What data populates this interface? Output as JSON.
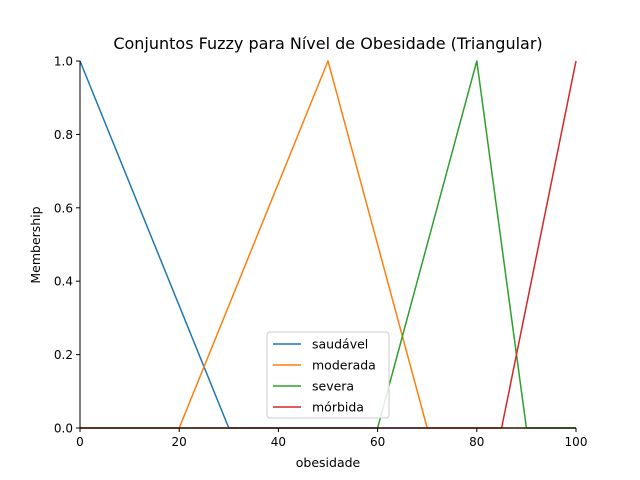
{
  "chart_data": {
    "type": "line",
    "title": "Conjuntos Fuzzy para Nível de Obesidade (Triangular)",
    "xlabel": "obesidade",
    "ylabel": "Membership",
    "xlim": [
      0,
      100
    ],
    "ylim": [
      0,
      1.0
    ],
    "x_ticks": [
      0,
      20,
      40,
      60,
      80,
      100
    ],
    "y_ticks": [
      "0.0",
      "0.2",
      "0.4",
      "0.6",
      "0.8",
      "1.0"
    ],
    "grid": false,
    "legend_position": "bottom-center",
    "series": [
      {
        "name": "saudável",
        "color": "#1f77b4",
        "x": [
          0,
          30,
          100
        ],
        "y": [
          1,
          0,
          0
        ]
      },
      {
        "name": "moderada",
        "color": "#ff7f0e",
        "x": [
          0,
          20,
          50,
          70,
          100
        ],
        "y": [
          0,
          0,
          1,
          0,
          0
        ]
      },
      {
        "name": "severa",
        "color": "#2ca02c",
        "x": [
          0,
          60,
          80,
          90,
          100
        ],
        "y": [
          0,
          0,
          1,
          0,
          0
        ]
      },
      {
        "name": "mórbida",
        "color": "#d62728",
        "x": [
          0,
          85,
          100
        ],
        "y": [
          0,
          0,
          1
        ]
      }
    ]
  }
}
